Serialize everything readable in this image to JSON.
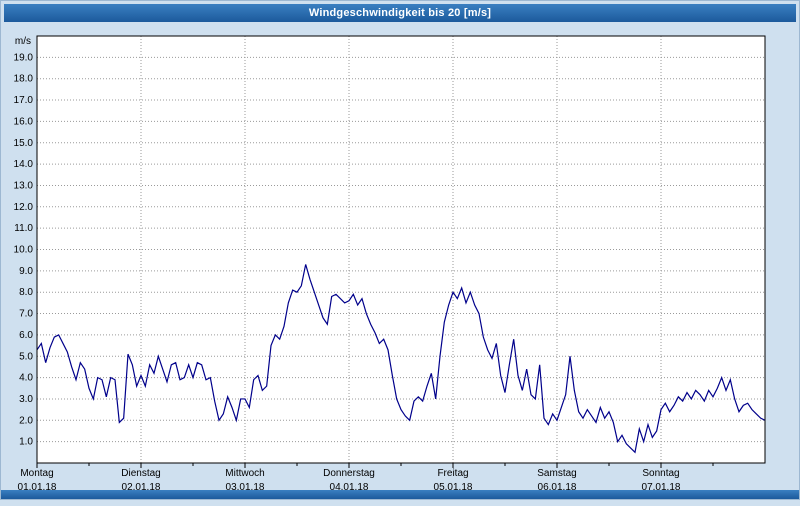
{
  "title": "Windgeschwindigkeit bis 20 [m/s]",
  "colors": {
    "accent_top": "#3a7fc1",
    "accent_bottom": "#1c5a9c",
    "page_background": "#cfe0ef",
    "plot_background": "#ffffff",
    "line_color": "#00008b",
    "grid_color": "#9a9a9a",
    "text_color": "#000000"
  },
  "chart_data": {
    "type": "line",
    "title": "Windgeschwindigkeit bis 20 [m/s]",
    "y_unit": "m/s",
    "ylim": [
      0,
      20
    ],
    "y_ticks": [
      "1.0",
      "2.0",
      "3.0",
      "4.0",
      "5.0",
      "6.0",
      "7.0",
      "8.0",
      "9.0",
      "10.0",
      "11.0",
      "12.0",
      "13.0",
      "14.0",
      "15.0",
      "16.0",
      "17.0",
      "18.0",
      "19.0"
    ],
    "grid": true,
    "legend_position": "none",
    "hours_per_day": 24,
    "x_days": [
      {
        "name": "Montag",
        "date": "01.01.18"
      },
      {
        "name": "Dienstag",
        "date": "02.01.18"
      },
      {
        "name": "Mittwoch",
        "date": "03.01.18"
      },
      {
        "name": "Donnerstag",
        "date": "04.01.18"
      },
      {
        "name": "Freitag",
        "date": "05.01.18"
      },
      {
        "name": "Samstag",
        "date": "06.01.18"
      },
      {
        "name": "Sonntag",
        "date": "07.01.18"
      }
    ],
    "series": [
      {
        "name": "Windgeschwindigkeit",
        "values": [
          5.3,
          5.6,
          4.7,
          5.4,
          5.9,
          6.0,
          5.6,
          5.2,
          4.5,
          3.9,
          4.7,
          4.4,
          3.5,
          3.0,
          4.0,
          3.9,
          3.1,
          4.0,
          3.9,
          1.9,
          2.1,
          5.1,
          4.6,
          3.6,
          4.1,
          3.6,
          4.6,
          4.2,
          5.0,
          4.4,
          3.8,
          4.6,
          4.7,
          3.9,
          4.0,
          4.6,
          4.0,
          4.7,
          4.6,
          3.9,
          4.0,
          2.9,
          2.0,
          2.3,
          3.1,
          2.6,
          2.0,
          3.0,
          3.0,
          2.6,
          3.9,
          4.1,
          3.4,
          3.6,
          5.5,
          6.0,
          5.8,
          6.4,
          7.5,
          8.1,
          8.0,
          8.3,
          9.3,
          8.6,
          8.0,
          7.4,
          6.8,
          6.5,
          7.8,
          7.9,
          7.7,
          7.5,
          7.6,
          7.9,
          7.4,
          7.7,
          7.0,
          6.5,
          6.1,
          5.6,
          5.8,
          5.3,
          4.1,
          3.0,
          2.5,
          2.2,
          2.0,
          2.9,
          3.1,
          2.9,
          3.6,
          4.2,
          3.0,
          5.0,
          6.6,
          7.4,
          8.0,
          7.7,
          8.2,
          7.5,
          8.0,
          7.4,
          7.0,
          5.9,
          5.3,
          4.9,
          5.6,
          4.1,
          3.3,
          4.6,
          5.8,
          4.1,
          3.4,
          4.4,
          3.2,
          3.0,
          4.6,
          2.1,
          1.8,
          2.3,
          2.0,
          2.6,
          3.2,
          5.0,
          3.4,
          2.4,
          2.1,
          2.5,
          2.2,
          1.9,
          2.6,
          2.1,
          2.4,
          1.9,
          1.0,
          1.3,
          0.9,
          0.7,
          0.5,
          1.6,
          1.0,
          1.8,
          1.2,
          1.5,
          2.5,
          2.8,
          2.4,
          2.7,
          3.1,
          2.9,
          3.3,
          3.0,
          3.4,
          3.2,
          2.9,
          3.4,
          3.1,
          3.5,
          4.0,
          3.4,
          3.9,
          3.0,
          2.4,
          2.7,
          2.8,
          2.5,
          2.3,
          2.1,
          2.0
        ]
      }
    ]
  }
}
